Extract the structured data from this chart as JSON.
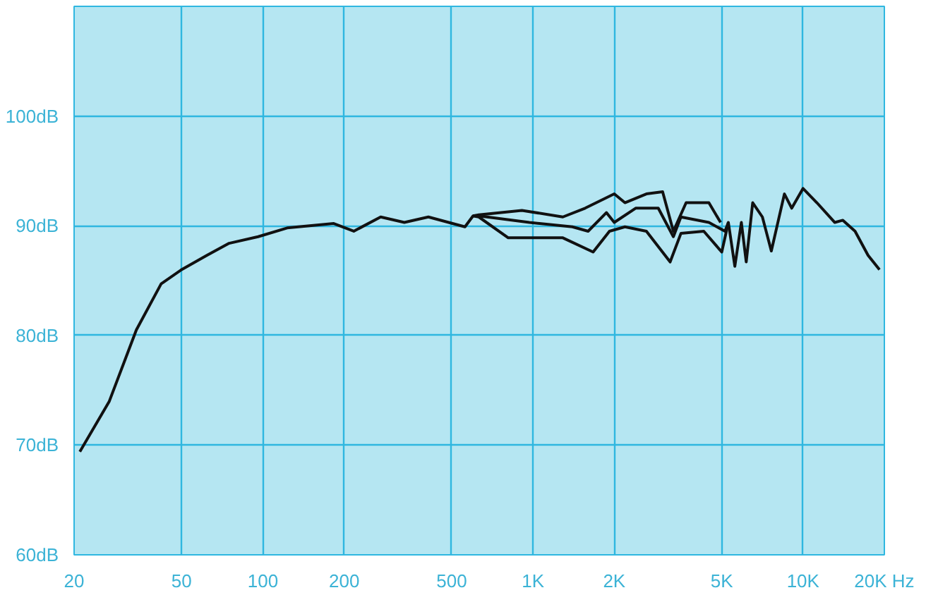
{
  "chart_data": {
    "type": "line",
    "xlim": [
      20,
      20000
    ],
    "ylim": [
      60,
      110
    ],
    "xticks": [
      20,
      50,
      100,
      200,
      500,
      {
        "value": 1000,
        "label": "1K"
      },
      {
        "value": 2000,
        "label": "2K"
      },
      {
        "value": 5000,
        "label": "5K"
      },
      {
        "value": 10000,
        "label": "10K"
      },
      {
        "value": 20000,
        "label": "20K Hz"
      }
    ],
    "yticks": [
      {
        "value": 60,
        "label": "60dB"
      },
      {
        "value": 70,
        "label": "70dB"
      },
      {
        "value": 80,
        "label": "80dB"
      },
      {
        "value": 90,
        "label": "90dB"
      },
      {
        "value": 100,
        "label": "100dB"
      }
    ],
    "log": "x",
    "grid": true,
    "marker": "none",
    "line_style": "solid",
    "series": [
      {
        "color": "#111111",
        "x": [
          21,
          27,
          34,
          42,
          50,
          62,
          75,
          96,
          123,
          183,
          217,
          273,
          334,
          410,
          560,
          600,
          630,
          970,
          1400,
          1600,
          1870,
          2000,
          2400,
          2910,
          3310,
          3530,
          4480,
          5140,
          5290,
          5590,
          5910,
          6160,
          6510,
          7070,
          7630,
          8530,
          9080,
          10000,
          11250,
          13110,
          14040,
          15580,
          17410,
          19190
        ],
        "values": [
          69.4,
          74.0,
          80.5,
          84.7,
          86.0,
          87.3,
          88.4,
          89.0,
          89.8,
          90.2,
          89.5,
          90.8,
          90.3,
          90.8,
          89.9,
          90.9,
          90.9,
          90.3,
          89.9,
          89.5,
          91.2,
          90.3,
          91.6,
          91.6,
          89.0,
          90.8,
          90.3,
          89.5,
          90.3,
          86.3,
          90.3,
          86.7,
          92.1,
          90.8,
          87.7,
          92.9,
          91.6,
          93.4,
          92.1,
          90.3,
          90.5,
          89.5,
          87.3,
          86.0
        ]
      },
      {
        "color": "#111111",
        "x": [
          600,
          630,
          910,
          1290,
          1560,
          2000,
          2190,
          2630,
          3020,
          3310,
          3690,
          4480,
          4950
        ],
        "values": [
          90.9,
          91.0,
          91.4,
          90.8,
          91.6,
          92.9,
          92.1,
          92.9,
          93.1,
          89.5,
          92.1,
          92.1,
          90.3
        ]
      },
      {
        "color": "#111111",
        "x": [
          600,
          630,
          810,
          1290,
          1670,
          1920,
          2190,
          2630,
          3220,
          3530,
          4290,
          5000,
          5290
        ],
        "values": [
          90.9,
          90.8,
          88.9,
          88.9,
          87.6,
          89.5,
          89.9,
          89.5,
          86.7,
          89.3,
          89.5,
          87.6,
          90.3
        ]
      }
    ]
  }
}
